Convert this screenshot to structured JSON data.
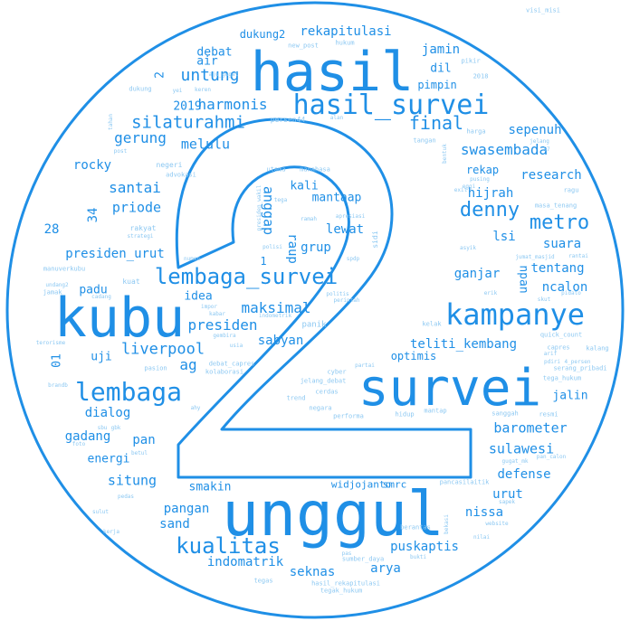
{
  "colors": {
    "primary": "#1f8fe6",
    "light": "#8cc8f2"
  },
  "cloud": {
    "words": [
      "unggul",
      "survei",
      "kubu",
      "hasil",
      "hasil_survei",
      "kampanye",
      "lembaga_survei",
      "lembaga",
      "kualitas",
      "silaturahmi",
      "denny",
      "metro",
      "untung",
      "harmonis",
      "gerung",
      "melulu",
      "final",
      "sepenuh",
      "swasembada",
      "santai",
      "anggap",
      "priode",
      "rocky",
      "presiden_urut",
      "padu",
      "idea",
      "raup",
      "grup",
      "lewat",
      "maksimal",
      "presiden",
      "sabyan",
      "liverpool",
      "uji",
      "ag",
      "dialog",
      "gadang",
      "pan",
      "energi",
      "situng",
      "smakin",
      "pangan",
      "sand",
      "indomatrik",
      "seknas",
      "arya",
      "puskaptis",
      "nissa",
      "defense",
      "urut",
      "sulawesi",
      "barometer",
      "jalin",
      "teliti_kembang",
      "optimis",
      "tentang",
      "ncalon",
      "suara",
      "lsi",
      "npan",
      "ganjar",
      "research",
      "hijrah",
      "rekap",
      "kali",
      "mantaap",
      "jamin",
      "dil",
      "pimpin",
      "rekapitulasi",
      "dukung2",
      "debat",
      "air",
      "2019",
      "34",
      "28",
      "01",
      "2",
      "1",
      "widjojanto",
      "smrc"
    ],
    "small_words": [
      "visi_misi",
      "new_post",
      "hukum",
      "aju_gugat",
      "pikir",
      "2018",
      "dukung",
      "yei",
      "keren",
      "persen44",
      "alan",
      "harga",
      "tangan",
      "tahan",
      "post",
      "negeri",
      "advokasi",
      "utama",
      "manahasa",
      "rakyat",
      "strategi",
      "presiden_wakil",
      "tega",
      "ramah",
      "apresiasi",
      "sidi",
      "polisi",
      "spdp",
      "numen",
      "manuverkubu",
      "undang2",
      "jamak",
      "kuat",
      "cadang",
      "politis",
      "perintah",
      "impor",
      "kabar",
      "indometrik",
      "panik",
      "gembira",
      "usia",
      "debat_capres",
      "kolaborasi",
      "pasion",
      "terorisme",
      "brandb",
      "cyber",
      "jelang_debat",
      "cerdas",
      "trend",
      "negara",
      "partai",
      "performa",
      "hidup",
      "mantap",
      "kelak",
      "quick_count",
      "capres",
      "serang_pribadi",
      "tega_hukum",
      "sanggah",
      "resmi",
      "gugat_mk",
      "pan_calon",
      "pancasilaitik",
      "website",
      "sapek",
      "bekasi",
      "tegas",
      "sumber_daya",
      "tegak_hukum",
      "hasil_rekapitulasi",
      "berantas",
      "bukti",
      "eggi",
      "ragu",
      "masa_tenang",
      "jumat_masjid",
      "rantai",
      "asyik",
      "kalang",
      "pidato",
      "skut",
      "erik",
      "sbu",
      "gbk",
      "foto",
      "betul",
      "kerja",
      "sulut",
      "pedas",
      "pas",
      "nilai",
      "ahy",
      "arif",
      "pdiri",
      "4_persen",
      "bentuk",
      "jelang",
      "pusing",
      "exit",
      "57"
    ]
  }
}
